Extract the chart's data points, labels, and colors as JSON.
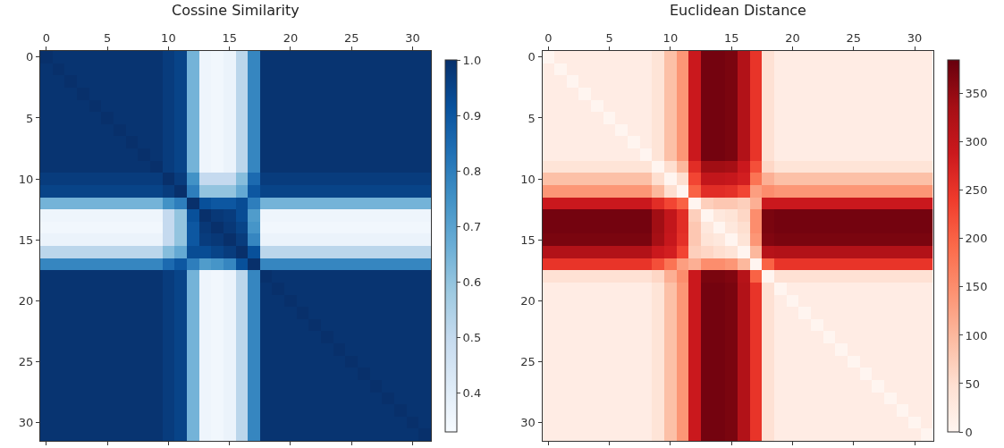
{
  "chart_data": [
    {
      "type": "heatmap",
      "title": "Cossine Similarity",
      "categories": [
        "0",
        null,
        null,
        null,
        null,
        "5",
        null,
        null,
        null,
        null,
        "10",
        null,
        null,
        null,
        null,
        "15",
        null,
        null,
        null,
        null,
        "20",
        null,
        null,
        null,
        null,
        "25",
        null,
        null,
        null,
        null,
        "30",
        null
      ],
      "y_categories": [
        "0",
        null,
        null,
        null,
        null,
        "5",
        null,
        null,
        null,
        null,
        "10",
        null,
        null,
        null,
        null,
        "15",
        null,
        null,
        null,
        null,
        "20",
        null,
        null,
        null,
        null,
        "25",
        null,
        null,
        null,
        null,
        "30",
        null
      ],
      "colors": [
        "#f7fbff",
        "#deebf7",
        "#c6dbef",
        "#9ecae1",
        "#6baed6",
        "#4292c6",
        "#2171b5",
        "#08519c",
        "#08306b"
      ],
      "clim": [
        0.33,
        1.0
      ],
      "cticks": [
        0.4,
        0.5,
        0.6,
        0.7,
        0.8,
        0.9,
        {
          "value": 1.0,
          "label": "1.0"
        }
      ],
      "cells": [
        [
          1.0,
          0.99,
          0.99,
          0.99,
          0.99,
          0.99,
          0.99,
          0.99,
          0.99,
          0.99,
          0.97,
          0.95,
          0.65,
          0.36,
          0.35,
          0.37,
          0.52,
          0.78,
          0.99,
          0.99,
          0.99,
          0.99,
          0.99,
          0.99,
          0.99,
          0.99,
          0.99,
          0.99,
          0.99,
          0.99,
          0.99,
          0.99
        ],
        [
          0.99,
          1.0,
          0.99,
          0.99,
          0.99,
          0.99,
          0.99,
          0.99,
          0.99,
          0.99,
          0.97,
          0.95,
          0.65,
          0.36,
          0.35,
          0.37,
          0.52,
          0.78,
          0.99,
          0.99,
          0.99,
          0.99,
          0.99,
          0.99,
          0.99,
          0.99,
          0.99,
          0.99,
          0.99,
          0.99,
          0.99,
          0.99
        ],
        [
          0.99,
          0.99,
          1.0,
          0.99,
          0.99,
          0.99,
          0.99,
          0.99,
          0.99,
          0.99,
          0.97,
          0.95,
          0.65,
          0.36,
          0.35,
          0.37,
          0.52,
          0.78,
          0.99,
          0.99,
          0.99,
          0.99,
          0.99,
          0.99,
          0.99,
          0.99,
          0.99,
          0.99,
          0.99,
          0.99,
          0.99,
          0.99
        ],
        [
          0.99,
          0.99,
          0.99,
          1.0,
          0.99,
          0.99,
          0.99,
          0.99,
          0.99,
          0.99,
          0.97,
          0.95,
          0.65,
          0.36,
          0.35,
          0.37,
          0.52,
          0.78,
          0.99,
          0.99,
          0.99,
          0.99,
          0.99,
          0.99,
          0.99,
          0.99,
          0.99,
          0.99,
          0.99,
          0.99,
          0.99,
          0.99
        ],
        [
          0.99,
          0.99,
          0.99,
          0.99,
          1.0,
          0.99,
          0.99,
          0.99,
          0.99,
          0.99,
          0.97,
          0.95,
          0.65,
          0.36,
          0.35,
          0.37,
          0.52,
          0.78,
          0.99,
          0.99,
          0.99,
          0.99,
          0.99,
          0.99,
          0.99,
          0.99,
          0.99,
          0.99,
          0.99,
          0.99,
          0.99,
          0.99
        ],
        [
          0.99,
          0.99,
          0.99,
          0.99,
          0.99,
          1.0,
          0.99,
          0.99,
          0.99,
          0.99,
          0.97,
          0.95,
          0.65,
          0.36,
          0.35,
          0.37,
          0.52,
          0.78,
          0.99,
          0.99,
          0.99,
          0.99,
          0.99,
          0.99,
          0.99,
          0.99,
          0.99,
          0.99,
          0.99,
          0.99,
          0.99,
          0.99
        ],
        [
          0.99,
          0.99,
          0.99,
          0.99,
          0.99,
          0.99,
          1.0,
          0.99,
          0.99,
          0.99,
          0.97,
          0.95,
          0.65,
          0.36,
          0.35,
          0.37,
          0.52,
          0.78,
          0.99,
          0.99,
          0.99,
          0.99,
          0.99,
          0.99,
          0.99,
          0.99,
          0.99,
          0.99,
          0.99,
          0.99,
          0.99,
          0.99
        ],
        [
          0.99,
          0.99,
          0.99,
          0.99,
          0.99,
          0.99,
          0.99,
          1.0,
          0.99,
          0.99,
          0.97,
          0.95,
          0.65,
          0.36,
          0.35,
          0.37,
          0.52,
          0.78,
          0.99,
          0.99,
          0.99,
          0.99,
          0.99,
          0.99,
          0.99,
          0.99,
          0.99,
          0.99,
          0.99,
          0.99,
          0.99,
          0.99
        ],
        [
          0.99,
          0.99,
          0.99,
          0.99,
          0.99,
          0.99,
          0.99,
          0.99,
          1.0,
          0.99,
          0.97,
          0.95,
          0.65,
          0.36,
          0.35,
          0.37,
          0.52,
          0.78,
          0.99,
          0.99,
          0.99,
          0.99,
          0.99,
          0.99,
          0.99,
          0.99,
          0.99,
          0.99,
          0.99,
          0.99,
          0.99,
          0.99
        ],
        [
          0.99,
          0.99,
          0.99,
          0.99,
          0.99,
          0.99,
          0.99,
          0.99,
          0.99,
          1.0,
          0.97,
          0.95,
          0.65,
          0.36,
          0.35,
          0.37,
          0.52,
          0.78,
          0.99,
          0.99,
          0.99,
          0.99,
          0.99,
          0.99,
          0.99,
          0.99,
          0.99,
          0.99,
          0.99,
          0.99,
          0.99,
          0.99
        ],
        [
          0.97,
          0.97,
          0.97,
          0.97,
          0.97,
          0.97,
          0.97,
          0.97,
          0.97,
          0.97,
          1.0,
          0.97,
          0.75,
          0.5,
          0.5,
          0.5,
          0.62,
          0.85,
          0.97,
          0.97,
          0.97,
          0.97,
          0.97,
          0.97,
          0.97,
          0.97,
          0.97,
          0.97,
          0.97,
          0.97,
          0.97,
          0.97
        ],
        [
          0.95,
          0.95,
          0.95,
          0.95,
          0.95,
          0.95,
          0.95,
          0.95,
          0.95,
          0.95,
          0.97,
          1.0,
          0.8,
          0.6,
          0.6,
          0.6,
          0.68,
          0.9,
          0.95,
          0.95,
          0.95,
          0.95,
          0.95,
          0.95,
          0.95,
          0.95,
          0.95,
          0.95,
          0.95,
          0.95,
          0.95,
          0.95
        ],
        [
          0.65,
          0.65,
          0.65,
          0.65,
          0.65,
          0.65,
          0.65,
          0.65,
          0.65,
          0.65,
          0.75,
          0.8,
          1.0,
          0.92,
          0.9,
          0.9,
          0.93,
          0.8,
          0.65,
          0.65,
          0.65,
          0.65,
          0.65,
          0.65,
          0.65,
          0.65,
          0.65,
          0.65,
          0.65,
          0.65,
          0.65,
          0.65
        ],
        [
          0.36,
          0.36,
          0.36,
          0.36,
          0.36,
          0.36,
          0.36,
          0.36,
          0.36,
          0.36,
          0.5,
          0.6,
          0.92,
          1.0,
          0.98,
          0.97,
          0.93,
          0.72,
          0.36,
          0.36,
          0.36,
          0.36,
          0.36,
          0.36,
          0.36,
          0.36,
          0.36,
          0.36,
          0.36,
          0.36,
          0.36,
          0.36
        ],
        [
          0.35,
          0.35,
          0.35,
          0.35,
          0.35,
          0.35,
          0.35,
          0.35,
          0.35,
          0.35,
          0.5,
          0.6,
          0.9,
          0.98,
          1.0,
          0.98,
          0.95,
          0.74,
          0.35,
          0.35,
          0.35,
          0.35,
          0.35,
          0.35,
          0.35,
          0.35,
          0.35,
          0.35,
          0.35,
          0.35,
          0.35,
          0.35
        ],
        [
          0.37,
          0.37,
          0.37,
          0.37,
          0.37,
          0.37,
          0.37,
          0.37,
          0.37,
          0.37,
          0.5,
          0.6,
          0.9,
          0.97,
          0.98,
          1.0,
          0.97,
          0.78,
          0.37,
          0.37,
          0.37,
          0.37,
          0.37,
          0.37,
          0.37,
          0.37,
          0.37,
          0.37,
          0.37,
          0.37,
          0.37,
          0.37
        ],
        [
          0.52,
          0.52,
          0.52,
          0.52,
          0.52,
          0.52,
          0.52,
          0.52,
          0.52,
          0.52,
          0.62,
          0.68,
          0.93,
          0.93,
          0.95,
          0.97,
          1.0,
          0.92,
          0.52,
          0.52,
          0.52,
          0.52,
          0.52,
          0.52,
          0.52,
          0.52,
          0.52,
          0.52,
          0.52,
          0.52,
          0.52,
          0.52
        ],
        [
          0.78,
          0.78,
          0.78,
          0.78,
          0.78,
          0.78,
          0.78,
          0.78,
          0.78,
          0.78,
          0.85,
          0.9,
          0.8,
          0.72,
          0.74,
          0.78,
          0.92,
          1.0,
          0.78,
          0.78,
          0.78,
          0.78,
          0.78,
          0.78,
          0.78,
          0.78,
          0.78,
          0.78,
          0.78,
          0.78,
          0.78,
          0.78
        ],
        [
          0.99,
          0.99,
          0.99,
          0.99,
          0.99,
          0.99,
          0.99,
          0.99,
          0.99,
          0.99,
          0.97,
          0.95,
          0.65,
          0.36,
          0.35,
          0.37,
          0.52,
          0.78,
          1.0,
          0.99,
          0.99,
          0.99,
          0.99,
          0.99,
          0.99,
          0.99,
          0.99,
          0.99,
          0.99,
          0.99,
          0.99,
          0.99
        ],
        [
          0.99,
          0.99,
          0.99,
          0.99,
          0.99,
          0.99,
          0.99,
          0.99,
          0.99,
          0.99,
          0.97,
          0.95,
          0.65,
          0.36,
          0.35,
          0.37,
          0.52,
          0.78,
          0.99,
          1.0,
          0.99,
          0.99,
          0.99,
          0.99,
          0.99,
          0.99,
          0.99,
          0.99,
          0.99,
          0.99,
          0.99,
          0.99
        ],
        [
          0.99,
          0.99,
          0.99,
          0.99,
          0.99,
          0.99,
          0.99,
          0.99,
          0.99,
          0.99,
          0.97,
          0.95,
          0.65,
          0.36,
          0.35,
          0.37,
          0.52,
          0.78,
          0.99,
          0.99,
          1.0,
          0.99,
          0.99,
          0.99,
          0.99,
          0.99,
          0.99,
          0.99,
          0.99,
          0.99,
          0.99,
          0.99
        ],
        [
          0.99,
          0.99,
          0.99,
          0.99,
          0.99,
          0.99,
          0.99,
          0.99,
          0.99,
          0.99,
          0.97,
          0.95,
          0.65,
          0.36,
          0.35,
          0.37,
          0.52,
          0.78,
          0.99,
          0.99,
          0.99,
          1.0,
          0.99,
          0.99,
          0.99,
          0.99,
          0.99,
          0.99,
          0.99,
          0.99,
          0.99,
          0.99
        ],
        [
          0.99,
          0.99,
          0.99,
          0.99,
          0.99,
          0.99,
          0.99,
          0.99,
          0.99,
          0.99,
          0.97,
          0.95,
          0.65,
          0.36,
          0.35,
          0.37,
          0.52,
          0.78,
          0.99,
          0.99,
          0.99,
          0.99,
          1.0,
          0.99,
          0.99,
          0.99,
          0.99,
          0.99,
          0.99,
          0.99,
          0.99,
          0.99
        ],
        [
          0.99,
          0.99,
          0.99,
          0.99,
          0.99,
          0.99,
          0.99,
          0.99,
          0.99,
          0.99,
          0.97,
          0.95,
          0.65,
          0.36,
          0.35,
          0.37,
          0.52,
          0.78,
          0.99,
          0.99,
          0.99,
          0.99,
          0.99,
          1.0,
          0.99,
          0.99,
          0.99,
          0.99,
          0.99,
          0.99,
          0.99,
          0.99
        ],
        [
          0.99,
          0.99,
          0.99,
          0.99,
          0.99,
          0.99,
          0.99,
          0.99,
          0.99,
          0.99,
          0.97,
          0.95,
          0.65,
          0.36,
          0.35,
          0.37,
          0.52,
          0.78,
          0.99,
          0.99,
          0.99,
          0.99,
          0.99,
          0.99,
          1.0,
          0.99,
          0.99,
          0.99,
          0.99,
          0.99,
          0.99,
          0.99
        ],
        [
          0.99,
          0.99,
          0.99,
          0.99,
          0.99,
          0.99,
          0.99,
          0.99,
          0.99,
          0.99,
          0.97,
          0.95,
          0.65,
          0.36,
          0.35,
          0.37,
          0.52,
          0.78,
          0.99,
          0.99,
          0.99,
          0.99,
          0.99,
          0.99,
          0.99,
          1.0,
          0.99,
          0.99,
          0.99,
          0.99,
          0.99,
          0.99
        ],
        [
          0.99,
          0.99,
          0.99,
          0.99,
          0.99,
          0.99,
          0.99,
          0.99,
          0.99,
          0.99,
          0.97,
          0.95,
          0.65,
          0.36,
          0.35,
          0.37,
          0.52,
          0.78,
          0.99,
          0.99,
          0.99,
          0.99,
          0.99,
          0.99,
          0.99,
          0.99,
          1.0,
          0.99,
          0.99,
          0.99,
          0.99,
          0.99
        ],
        [
          0.99,
          0.99,
          0.99,
          0.99,
          0.99,
          0.99,
          0.99,
          0.99,
          0.99,
          0.99,
          0.97,
          0.95,
          0.65,
          0.36,
          0.35,
          0.37,
          0.52,
          0.78,
          0.99,
          0.99,
          0.99,
          0.99,
          0.99,
          0.99,
          0.99,
          0.99,
          0.99,
          1.0,
          0.99,
          0.99,
          0.99,
          0.99
        ],
        [
          0.99,
          0.99,
          0.99,
          0.99,
          0.99,
          0.99,
          0.99,
          0.99,
          0.99,
          0.99,
          0.97,
          0.95,
          0.65,
          0.36,
          0.35,
          0.37,
          0.52,
          0.78,
          0.99,
          0.99,
          0.99,
          0.99,
          0.99,
          0.99,
          0.99,
          0.99,
          0.99,
          0.99,
          1.0,
          0.99,
          0.99,
          0.99
        ],
        [
          0.99,
          0.99,
          0.99,
          0.99,
          0.99,
          0.99,
          0.99,
          0.99,
          0.99,
          0.99,
          0.97,
          0.95,
          0.65,
          0.36,
          0.35,
          0.37,
          0.52,
          0.78,
          0.99,
          0.99,
          0.99,
          0.99,
          0.99,
          0.99,
          0.99,
          0.99,
          0.99,
          0.99,
          0.99,
          1.0,
          0.99,
          0.99
        ],
        [
          0.99,
          0.99,
          0.99,
          0.99,
          0.99,
          0.99,
          0.99,
          0.99,
          0.99,
          0.99,
          0.97,
          0.95,
          0.65,
          0.36,
          0.35,
          0.37,
          0.52,
          0.78,
          0.99,
          0.99,
          0.99,
          0.99,
          0.99,
          0.99,
          0.99,
          0.99,
          0.99,
          0.99,
          0.99,
          0.99,
          1.0,
          0.99
        ],
        [
          0.99,
          0.99,
          0.99,
          0.99,
          0.99,
          0.99,
          0.99,
          0.99,
          0.99,
          0.99,
          0.97,
          0.95,
          0.65,
          0.36,
          0.35,
          0.37,
          0.52,
          0.78,
          0.99,
          0.99,
          0.99,
          0.99,
          0.99,
          0.99,
          0.99,
          0.99,
          0.99,
          0.99,
          0.99,
          0.99,
          0.99,
          1.0
        ]
      ]
    },
    {
      "type": "heatmap",
      "title": "Euclidean Distance",
      "categories": [
        "0",
        null,
        null,
        null,
        null,
        "5",
        null,
        null,
        null,
        null,
        "10",
        null,
        null,
        null,
        null,
        "15",
        null,
        null,
        null,
        null,
        "20",
        null,
        null,
        null,
        null,
        "25",
        null,
        null,
        null,
        null,
        "30",
        null
      ],
      "y_categories": [
        "0",
        null,
        null,
        null,
        null,
        "5",
        null,
        null,
        null,
        null,
        "10",
        null,
        null,
        null,
        null,
        "15",
        null,
        null,
        null,
        null,
        "20",
        null,
        null,
        null,
        null,
        "25",
        null,
        null,
        null,
        null,
        "30",
        null
      ],
      "colors": [
        "#fff5f0",
        "#fee0d2",
        "#fcbba1",
        "#fc9272",
        "#fb6a4a",
        "#ef3b2c",
        "#cb181d",
        "#a50f15",
        "#67000d"
      ],
      "clim": [
        0,
        385
      ],
      "cticks": [
        0,
        50,
        100,
        150,
        200,
        250,
        300,
        350
      ],
      "cells": [
        [
          0,
          20,
          20,
          20,
          20,
          20,
          20,
          20,
          20,
          40,
          90,
          140,
          290,
          375,
          375,
          370,
          320,
          250,
          45,
          20,
          20,
          20,
          20,
          20,
          20,
          20,
          20,
          20,
          20,
          20,
          20,
          20
        ],
        [
          20,
          0,
          20,
          20,
          20,
          20,
          20,
          20,
          20,
          40,
          90,
          140,
          290,
          375,
          375,
          370,
          320,
          250,
          45,
          20,
          20,
          20,
          20,
          20,
          20,
          20,
          20,
          20,
          20,
          20,
          20,
          20
        ],
        [
          20,
          20,
          0,
          20,
          20,
          20,
          20,
          20,
          20,
          40,
          90,
          140,
          290,
          375,
          375,
          370,
          320,
          250,
          45,
          20,
          20,
          20,
          20,
          20,
          20,
          20,
          20,
          20,
          20,
          20,
          20,
          20
        ],
        [
          20,
          20,
          20,
          0,
          20,
          20,
          20,
          20,
          20,
          40,
          90,
          140,
          290,
          375,
          375,
          370,
          320,
          250,
          45,
          20,
          20,
          20,
          20,
          20,
          20,
          20,
          20,
          20,
          20,
          20,
          20,
          20
        ],
        [
          20,
          20,
          20,
          20,
          0,
          20,
          20,
          20,
          20,
          40,
          90,
          140,
          290,
          375,
          375,
          370,
          320,
          250,
          45,
          20,
          20,
          20,
          20,
          20,
          20,
          20,
          20,
          20,
          20,
          20,
          20,
          20
        ],
        [
          20,
          20,
          20,
          20,
          20,
          0,
          20,
          20,
          20,
          40,
          90,
          140,
          290,
          375,
          375,
          370,
          320,
          250,
          45,
          20,
          20,
          20,
          20,
          20,
          20,
          20,
          20,
          20,
          20,
          20,
          20,
          20
        ],
        [
          20,
          20,
          20,
          20,
          20,
          20,
          0,
          20,
          20,
          40,
          90,
          140,
          290,
          375,
          375,
          370,
          320,
          250,
          45,
          20,
          20,
          20,
          20,
          20,
          20,
          20,
          20,
          20,
          20,
          20,
          20,
          20
        ],
        [
          20,
          20,
          20,
          20,
          20,
          20,
          20,
          0,
          20,
          40,
          90,
          140,
          290,
          375,
          375,
          370,
          320,
          250,
          45,
          20,
          20,
          20,
          20,
          20,
          20,
          20,
          20,
          20,
          20,
          20,
          20,
          20
        ],
        [
          20,
          20,
          20,
          20,
          20,
          20,
          20,
          20,
          0,
          40,
          90,
          140,
          290,
          375,
          375,
          370,
          320,
          250,
          45,
          20,
          20,
          20,
          20,
          20,
          20,
          20,
          20,
          20,
          20,
          20,
          20,
          20
        ],
        [
          40,
          40,
          40,
          40,
          40,
          40,
          40,
          40,
          40,
          0,
          50,
          100,
          260,
          340,
          340,
          335,
          290,
          220,
          60,
          40,
          40,
          40,
          40,
          40,
          40,
          40,
          40,
          40,
          40,
          40,
          40,
          40
        ],
        [
          90,
          90,
          90,
          90,
          90,
          90,
          90,
          90,
          90,
          50,
          0,
          50,
          230,
          300,
          300,
          295,
          280,
          180,
          110,
          90,
          90,
          90,
          90,
          90,
          90,
          90,
          90,
          90,
          90,
          90,
          90,
          90
        ],
        [
          140,
          140,
          140,
          140,
          140,
          140,
          140,
          140,
          140,
          100,
          50,
          0,
          200,
          260,
          260,
          255,
          230,
          130,
          150,
          140,
          140,
          140,
          140,
          140,
          140,
          140,
          140,
          140,
          140,
          140,
          140,
          140
        ],
        [
          290,
          290,
          290,
          290,
          290,
          290,
          290,
          290,
          290,
          260,
          230,
          200,
          0,
          70,
          80,
          80,
          70,
          110,
          290,
          290,
          290,
          290,
          290,
          290,
          290,
          290,
          290,
          290,
          290,
          290,
          290,
          290
        ],
        [
          375,
          375,
          375,
          375,
          375,
          375,
          375,
          375,
          375,
          340,
          300,
          260,
          70,
          0,
          30,
          40,
          60,
          150,
          370,
          375,
          375,
          375,
          375,
          375,
          375,
          375,
          375,
          375,
          375,
          375,
          375,
          375
        ],
        [
          375,
          375,
          375,
          375,
          375,
          375,
          375,
          375,
          375,
          340,
          300,
          260,
          80,
          30,
          0,
          30,
          50,
          150,
          370,
          375,
          375,
          375,
          375,
          375,
          375,
          375,
          375,
          375,
          375,
          375,
          375,
          375
        ],
        [
          370,
          370,
          370,
          370,
          370,
          370,
          370,
          370,
          370,
          335,
          295,
          255,
          80,
          40,
          30,
          0,
          40,
          140,
          365,
          370,
          370,
          370,
          370,
          370,
          370,
          370,
          370,
          370,
          370,
          370,
          370,
          370
        ],
        [
          320,
          320,
          320,
          320,
          320,
          320,
          320,
          320,
          320,
          290,
          280,
          230,
          70,
          60,
          50,
          40,
          0,
          100,
          315,
          320,
          320,
          320,
          320,
          320,
          320,
          320,
          320,
          320,
          320,
          320,
          320,
          320
        ],
        [
          250,
          250,
          250,
          250,
          250,
          250,
          250,
          250,
          250,
          220,
          180,
          130,
          110,
          150,
          150,
          140,
          100,
          0,
          200,
          250,
          250,
          250,
          250,
          250,
          250,
          250,
          250,
          250,
          250,
          250,
          250,
          250
        ],
        [
          45,
          45,
          45,
          45,
          45,
          45,
          45,
          45,
          45,
          60,
          110,
          150,
          290,
          370,
          370,
          365,
          315,
          200,
          0,
          45,
          45,
          45,
          45,
          45,
          45,
          45,
          45,
          45,
          45,
          45,
          45,
          45
        ],
        [
          20,
          20,
          20,
          20,
          20,
          20,
          20,
          20,
          20,
          40,
          90,
          140,
          290,
          375,
          375,
          370,
          320,
          250,
          45,
          0,
          20,
          20,
          20,
          20,
          20,
          20,
          20,
          20,
          20,
          20,
          20,
          20
        ],
        [
          20,
          20,
          20,
          20,
          20,
          20,
          20,
          20,
          20,
          40,
          90,
          140,
          290,
          375,
          375,
          370,
          320,
          250,
          45,
          20,
          0,
          20,
          20,
          20,
          20,
          20,
          20,
          20,
          20,
          20,
          20,
          20
        ],
        [
          20,
          20,
          20,
          20,
          20,
          20,
          20,
          20,
          20,
          40,
          90,
          140,
          290,
          375,
          375,
          370,
          320,
          250,
          45,
          20,
          20,
          0,
          20,
          20,
          20,
          20,
          20,
          20,
          20,
          20,
          20,
          20
        ],
        [
          20,
          20,
          20,
          20,
          20,
          20,
          20,
          20,
          20,
          40,
          90,
          140,
          290,
          375,
          375,
          370,
          320,
          250,
          45,
          20,
          20,
          20,
          0,
          20,
          20,
          20,
          20,
          20,
          20,
          20,
          20,
          20
        ],
        [
          20,
          20,
          20,
          20,
          20,
          20,
          20,
          20,
          20,
          40,
          90,
          140,
          290,
          375,
          375,
          370,
          320,
          250,
          45,
          20,
          20,
          20,
          20,
          0,
          20,
          20,
          20,
          20,
          20,
          20,
          20,
          20
        ],
        [
          20,
          20,
          20,
          20,
          20,
          20,
          20,
          20,
          20,
          40,
          90,
          140,
          290,
          375,
          375,
          370,
          320,
          250,
          45,
          20,
          20,
          20,
          20,
          20,
          0,
          20,
          20,
          20,
          20,
          20,
          20,
          20
        ],
        [
          20,
          20,
          20,
          20,
          20,
          20,
          20,
          20,
          20,
          40,
          90,
          140,
          290,
          375,
          375,
          370,
          320,
          250,
          45,
          20,
          20,
          20,
          20,
          20,
          20,
          0,
          20,
          20,
          20,
          20,
          20,
          20
        ],
        [
          20,
          20,
          20,
          20,
          20,
          20,
          20,
          20,
          20,
          40,
          90,
          140,
          290,
          375,
          375,
          370,
          320,
          250,
          45,
          20,
          20,
          20,
          20,
          20,
          20,
          20,
          0,
          20,
          20,
          20,
          20,
          20
        ],
        [
          20,
          20,
          20,
          20,
          20,
          20,
          20,
          20,
          20,
          40,
          90,
          140,
          290,
          375,
          375,
          370,
          320,
          250,
          45,
          20,
          20,
          20,
          20,
          20,
          20,
          20,
          20,
          0,
          20,
          20,
          20,
          20
        ],
        [
          20,
          20,
          20,
          20,
          20,
          20,
          20,
          20,
          20,
          40,
          90,
          140,
          290,
          375,
          375,
          370,
          320,
          250,
          45,
          20,
          20,
          20,
          20,
          20,
          20,
          20,
          20,
          20,
          0,
          20,
          20,
          20
        ],
        [
          20,
          20,
          20,
          20,
          20,
          20,
          20,
          20,
          20,
          40,
          90,
          140,
          290,
          375,
          375,
          370,
          320,
          250,
          45,
          20,
          20,
          20,
          20,
          20,
          20,
          20,
          20,
          20,
          20,
          0,
          20,
          20
        ],
        [
          20,
          20,
          20,
          20,
          20,
          20,
          20,
          20,
          20,
          40,
          90,
          140,
          290,
          375,
          375,
          370,
          320,
          250,
          45,
          20,
          20,
          20,
          20,
          20,
          20,
          20,
          20,
          20,
          20,
          20,
          0,
          20
        ],
        [
          20,
          20,
          20,
          20,
          20,
          20,
          20,
          20,
          20,
          40,
          90,
          140,
          290,
          375,
          375,
          370,
          320,
          250,
          45,
          20,
          20,
          20,
          20,
          20,
          20,
          20,
          20,
          20,
          20,
          20,
          20,
          0
        ]
      ]
    }
  ]
}
